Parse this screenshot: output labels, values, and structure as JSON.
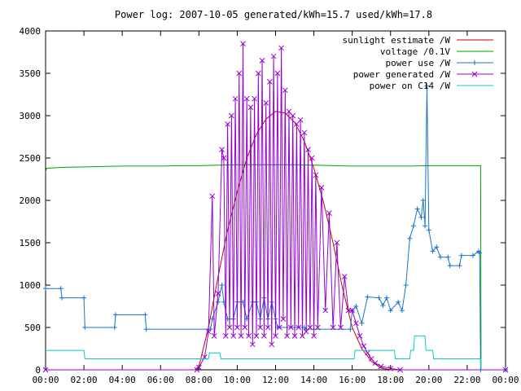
{
  "chart_data": {
    "type": "line",
    "title": "Power log: 2007-10-05 generated/kWh=15.7 used/kWh=17.8",
    "xlabel": "",
    "ylabel": "",
    "x_ticks": [
      "00:00",
      "02:00",
      "04:00",
      "06:00",
      "08:00",
      "10:00",
      "12:00",
      "14:00",
      "16:00",
      "18:00",
      "20:00",
      "22:00",
      "00:00"
    ],
    "xlim_hours": [
      0,
      24
    ],
    "y_ticks": [
      "0",
      "500",
      "1000",
      "1500",
      "2000",
      "2500",
      "3000",
      "3500",
      "4000"
    ],
    "ylim": [
      0,
      4000
    ],
    "grid": false,
    "legend_position": "top-right",
    "series": [
      {
        "name": "sunlight estimate /W",
        "color": "#cc0000",
        "marker": "none",
        "points": [
          [
            0,
            0
          ],
          [
            7.8,
            0
          ],
          [
            8.0,
            40
          ],
          [
            8.5,
            500
          ],
          [
            9.0,
            1100
          ],
          [
            9.5,
            1650
          ],
          [
            10.0,
            2100
          ],
          [
            10.5,
            2500
          ],
          [
            11.0,
            2780
          ],
          [
            11.5,
            2960
          ],
          [
            12.0,
            3050
          ],
          [
            12.5,
            3030
          ],
          [
            13.0,
            2920
          ],
          [
            13.5,
            2700
          ],
          [
            14.0,
            2380
          ],
          [
            14.5,
            1980
          ],
          [
            15.0,
            1500
          ],
          [
            15.5,
            960
          ],
          [
            16.0,
            500
          ],
          [
            16.5,
            250
          ],
          [
            17.0,
            100
          ],
          [
            17.5,
            20
          ],
          [
            18.0,
            0
          ],
          [
            22.7,
            0
          ]
        ]
      },
      {
        "name": "voltage /0.1V",
        "color": "#00a000",
        "marker": "none",
        "points": [
          [
            0,
            2330
          ],
          [
            0.05,
            2380
          ],
          [
            1.0,
            2390
          ],
          [
            2.0,
            2395
          ],
          [
            3.0,
            2400
          ],
          [
            4.0,
            2405
          ],
          [
            5.0,
            2405
          ],
          [
            6.0,
            2405
          ],
          [
            7.0,
            2410
          ],
          [
            8.0,
            2410
          ],
          [
            9.0,
            2415
          ],
          [
            10.0,
            2420
          ],
          [
            11.0,
            2420
          ],
          [
            12.0,
            2420
          ],
          [
            13.0,
            2420
          ],
          [
            14.0,
            2415
          ],
          [
            15.0,
            2410
          ],
          [
            16.0,
            2405
          ],
          [
            17.0,
            2405
          ],
          [
            18.0,
            2405
          ],
          [
            19.0,
            2405
          ],
          [
            20.0,
            2410
          ],
          [
            21.0,
            2410
          ],
          [
            22.0,
            2410
          ],
          [
            22.7,
            2410
          ],
          [
            22.72,
            0
          ]
        ]
      },
      {
        "name": "power use /W",
        "color": "#1874cd",
        "marker": "plus",
        "points": [
          [
            0,
            960
          ],
          [
            0.8,
            960
          ],
          [
            0.85,
            850
          ],
          [
            2.0,
            850
          ],
          [
            2.05,
            500
          ],
          [
            3.6,
            500
          ],
          [
            3.65,
            650
          ],
          [
            5.2,
            650
          ],
          [
            5.25,
            480
          ],
          [
            8.6,
            480
          ],
          [
            8.7,
            600
          ],
          [
            9.0,
            800
          ],
          [
            9.2,
            1000
          ],
          [
            9.3,
            800
          ],
          [
            9.5,
            600
          ],
          [
            9.8,
            600
          ],
          [
            10.0,
            800
          ],
          [
            10.3,
            800
          ],
          [
            10.5,
            600
          ],
          [
            10.8,
            800
          ],
          [
            11.0,
            800
          ],
          [
            11.2,
            600
          ],
          [
            11.4,
            850
          ],
          [
            11.6,
            600
          ],
          [
            11.8,
            800
          ],
          [
            12.0,
            600
          ],
          [
            12.1,
            500
          ],
          [
            13.5,
            500
          ],
          [
            13.6,
            480
          ],
          [
            15.9,
            480
          ],
          [
            16.0,
            700
          ],
          [
            16.2,
            750
          ],
          [
            16.5,
            550
          ],
          [
            16.8,
            860
          ],
          [
            17.4,
            850
          ],
          [
            17.6,
            760
          ],
          [
            17.8,
            850
          ],
          [
            18.0,
            700
          ],
          [
            18.4,
            800
          ],
          [
            18.6,
            700
          ],
          [
            18.8,
            1000
          ],
          [
            19.0,
            1550
          ],
          [
            19.2,
            1700
          ],
          [
            19.4,
            1900
          ],
          [
            19.6,
            1800
          ],
          [
            19.7,
            2000
          ],
          [
            19.8,
            1700
          ],
          [
            19.9,
            3350
          ],
          [
            20.0,
            1650
          ],
          [
            20.2,
            1400
          ],
          [
            20.4,
            1450
          ],
          [
            20.6,
            1330
          ],
          [
            21.0,
            1330
          ],
          [
            21.1,
            1230
          ],
          [
            21.6,
            1230
          ],
          [
            21.7,
            1350
          ],
          [
            22.3,
            1350
          ],
          [
            22.6,
            1400
          ],
          [
            22.65,
            1380
          ],
          [
            22.7,
            0
          ],
          [
            24,
            0
          ]
        ]
      },
      {
        "name": "power generated /W",
        "color": "#9400d3",
        "marker": "x",
        "points": [
          [
            0,
            0
          ],
          [
            7.9,
            0
          ],
          [
            8.0,
            30
          ],
          [
            8.3,
            150
          ],
          [
            8.5,
            450
          ],
          [
            8.7,
            2050
          ],
          [
            8.8,
            400
          ],
          [
            9.0,
            900
          ],
          [
            9.2,
            2600
          ],
          [
            9.3,
            2500
          ],
          [
            9.4,
            400
          ],
          [
            9.5,
            2900
          ],
          [
            9.6,
            500
          ],
          [
            9.7,
            3000
          ],
          [
            9.8,
            400
          ],
          [
            9.9,
            3200
          ],
          [
            10.0,
            500
          ],
          [
            10.1,
            3500
          ],
          [
            10.2,
            400
          ],
          [
            10.3,
            3850
          ],
          [
            10.4,
            500
          ],
          [
            10.5,
            3200
          ],
          [
            10.6,
            400
          ],
          [
            10.7,
            3100
          ],
          [
            10.8,
            300
          ],
          [
            10.9,
            3200
          ],
          [
            11.0,
            400
          ],
          [
            11.1,
            3500
          ],
          [
            11.2,
            500
          ],
          [
            11.3,
            3650
          ],
          [
            11.4,
            400
          ],
          [
            11.5,
            3150
          ],
          [
            11.6,
            500
          ],
          [
            11.7,
            3400
          ],
          [
            11.8,
            300
          ],
          [
            11.9,
            3700
          ],
          [
            12.0,
            400
          ],
          [
            12.1,
            3500
          ],
          [
            12.2,
            500
          ],
          [
            12.3,
            3800
          ],
          [
            12.4,
            600
          ],
          [
            12.5,
            3300
          ],
          [
            12.6,
            400
          ],
          [
            12.7,
            3050
          ],
          [
            12.8,
            500
          ],
          [
            12.9,
            3000
          ],
          [
            13.0,
            400
          ],
          [
            13.1,
            2900
          ],
          [
            13.2,
            500
          ],
          [
            13.3,
            2950
          ],
          [
            13.4,
            400
          ],
          [
            13.5,
            2800
          ],
          [
            13.6,
            450
          ],
          [
            13.7,
            2600
          ],
          [
            13.8,
            500
          ],
          [
            13.9,
            2500
          ],
          [
            14.0,
            400
          ],
          [
            14.1,
            2300
          ],
          [
            14.2,
            500
          ],
          [
            14.4,
            2150
          ],
          [
            14.6,
            700
          ],
          [
            14.8,
            1850
          ],
          [
            15.0,
            500
          ],
          [
            15.2,
            1500
          ],
          [
            15.4,
            500
          ],
          [
            15.6,
            1100
          ],
          [
            15.8,
            700
          ],
          [
            16.0,
            700
          ],
          [
            16.2,
            550
          ],
          [
            16.4,
            400
          ],
          [
            16.6,
            280
          ],
          [
            16.8,
            200
          ],
          [
            17.0,
            130
          ],
          [
            17.2,
            80
          ],
          [
            17.5,
            40
          ],
          [
            18.0,
            15
          ],
          [
            18.5,
            0
          ],
          [
            24,
            0
          ]
        ]
      },
      {
        "name": "power on C14 /W",
        "color": "#00cccc",
        "marker": "none",
        "points": [
          [
            0,
            230
          ],
          [
            2.0,
            230
          ],
          [
            2.05,
            130
          ],
          [
            8.5,
            130
          ],
          [
            8.55,
            200
          ],
          [
            9.1,
            200
          ],
          [
            9.15,
            130
          ],
          [
            16.1,
            130
          ],
          [
            16.15,
            230
          ],
          [
            18.2,
            230
          ],
          [
            18.25,
            130
          ],
          [
            19.0,
            130
          ],
          [
            19.05,
            230
          ],
          [
            19.2,
            230
          ],
          [
            19.25,
            400
          ],
          [
            19.8,
            400
          ],
          [
            19.85,
            230
          ],
          [
            20.2,
            230
          ],
          [
            20.25,
            130
          ],
          [
            22.7,
            130
          ],
          [
            22.72,
            0
          ]
        ]
      }
    ]
  }
}
